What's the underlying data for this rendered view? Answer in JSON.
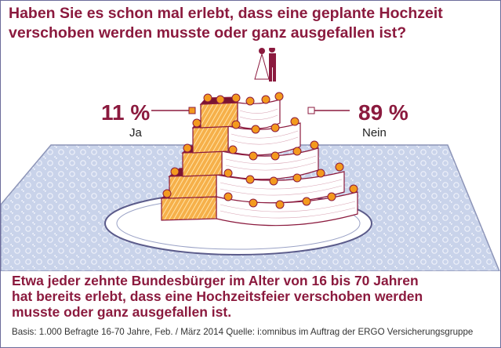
{
  "chart_data": {
    "type": "pie",
    "title": [
      "Haben Sie es schon mal erlebt, dass eine geplante Hochzeit",
      "verschoben werden musste oder ganz ausgefallen ist?"
    ],
    "categories": [
      "Ja",
      "Nein"
    ],
    "values": [
      11,
      89
    ],
    "value_labels": [
      "11 %",
      "89 %"
    ],
    "colors": {
      "ja": "#f39a1e",
      "nein": "#ffffff",
      "accent": "#8b1a3e",
      "tablecloth": "#c9d3ea"
    },
    "conclusion": [
      "Etwa jeder zehnte Bundesbürger im Alter von 16 bis 70 Jahren",
      "hat bereits erlebt, dass eine Hochzeitsfeier verschoben werden",
      "musste oder ganz ausgefallen ist."
    ],
    "source": "Basis: 1.000 Befragte 16-70 Jahre,  Feb. / März 2014   Quelle: i:omnibus im Auftrag der ERGO Versicherungsgruppe"
  }
}
